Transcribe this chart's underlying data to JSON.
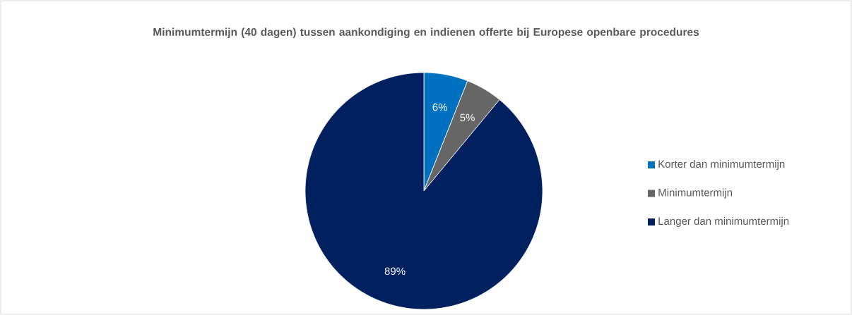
{
  "chart_data": {
    "type": "pie",
    "title": "Minimumtermijn (40 dagen) tussen aankondiging en indienen offerte bij Europese openbare procedures",
    "categories": [
      "Korter dan minimumtermijn",
      "Minimumtermijn",
      "Langer dan minimumtermijn"
    ],
    "values": [
      6,
      5,
      89
    ],
    "colors": [
      "#0070c0",
      "#666666",
      "#002060"
    ],
    "value_labels": [
      "6%",
      "5%",
      "89%"
    ],
    "legend": "right"
  }
}
